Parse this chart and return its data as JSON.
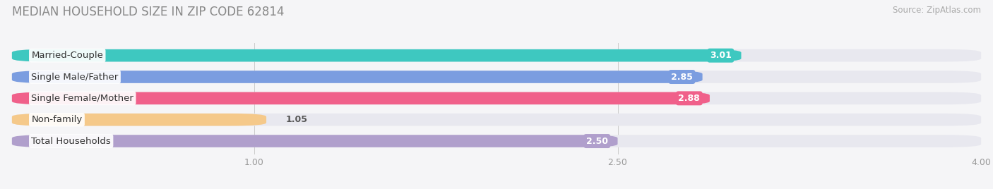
{
  "title": "MEDIAN HOUSEHOLD SIZE IN ZIP CODE 62814",
  "source": "Source: ZipAtlas.com",
  "categories": [
    "Married-Couple",
    "Single Male/Father",
    "Single Female/Mother",
    "Non-family",
    "Total Households"
  ],
  "values": [
    3.01,
    2.85,
    2.88,
    1.05,
    2.5
  ],
  "bar_colors": [
    "#3ec8c0",
    "#7b9de0",
    "#f0608a",
    "#f5c98a",
    "#b09fcc"
  ],
  "background_color": "#f5f5f7",
  "bar_bg_color": "#e8e8ef",
  "xlim": [
    0,
    4.0
  ],
  "xticks": [
    1.0,
    2.5,
    4.0
  ],
  "title_fontsize": 12,
  "source_fontsize": 8.5,
  "label_fontsize": 9.5,
  "value_fontsize": 9
}
